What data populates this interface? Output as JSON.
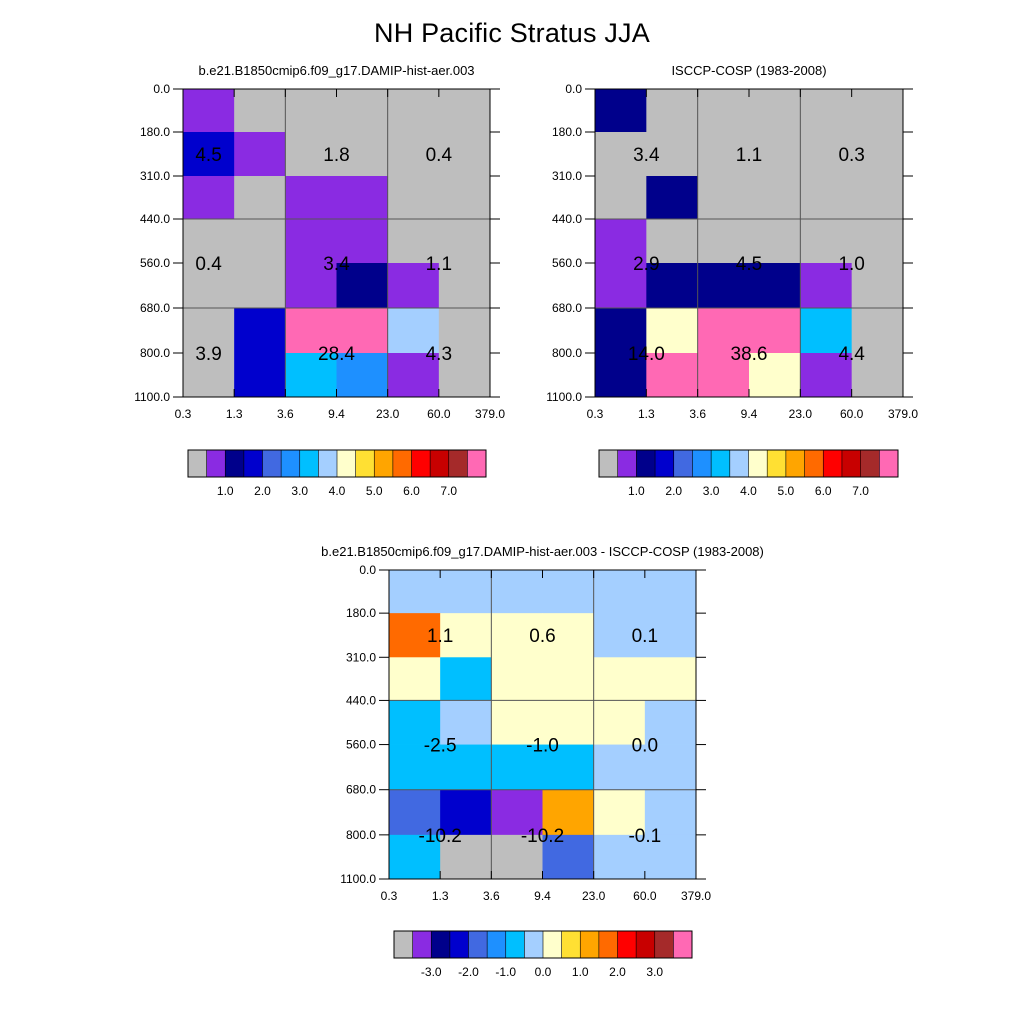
{
  "title": "NH Pacific Stratus JJA",
  "palette": {
    "abs": [
      "#BEBEBE",
      "#8A2BE2",
      "#00008B",
      "#0000CD",
      "#4169E1",
      "#1E90FF",
      "#00BFFF",
      "#A4CFFF",
      "#FFFFCC",
      "#FFE033",
      "#FFA500",
      "#FF6A00",
      "#FF0000",
      "#C80000",
      "#A52A2A",
      "#FF69B4"
    ],
    "diff": [
      "#BEBEBE",
      "#8A2BE2",
      "#00008B",
      "#0000CD",
      "#4169E1",
      "#1E90FF",
      "#00BFFF",
      "#A4CFFF",
      "#FFFFCC",
      "#FFE033",
      "#FFA500",
      "#FF6A00",
      "#FF0000",
      "#C80000",
      "#A52A2A",
      "#FF69B4"
    ]
  },
  "chart_data": [
    {
      "type": "heatmap",
      "subtitle": "b.e21.B1850cmip6.f09_g17.DAMIP-hist-aer.003",
      "x_ticks": [
        "0.3",
        "1.3",
        "3.6",
        "9.4",
        "23.0",
        "60.0",
        "379.0"
      ],
      "y_ticks": [
        "0.0",
        "180.0",
        "310.0",
        "440.0",
        "560.0",
        "680.0",
        "800.0",
        "1100.0"
      ],
      "cells": [
        [
          1,
          0,
          0,
          0,
          0,
          0
        ],
        [
          3,
          1,
          0,
          0,
          0,
          0
        ],
        [
          1,
          0,
          1,
          1,
          0,
          0
        ],
        [
          0,
          0,
          1,
          1,
          0,
          0
        ],
        [
          0,
          0,
          1,
          2,
          1,
          0
        ],
        [
          0,
          3,
          15,
          15,
          7,
          0
        ],
        [
          0,
          3,
          6,
          5,
          1,
          0
        ]
      ],
      "labels": [
        {
          "text": "4.5",
          "col": 0.5,
          "row": 1.5
        },
        {
          "text": "1.8",
          "col": 3,
          "row": 1.5
        },
        {
          "text": "0.4",
          "col": 5,
          "row": 1.5
        },
        {
          "text": "0.4",
          "col": 0.5,
          "row": 4
        },
        {
          "text": "3.4",
          "col": 3,
          "row": 4
        },
        {
          "text": "1.1",
          "col": 5,
          "row": 4
        },
        {
          "text": "3.9",
          "col": 0.5,
          "row": 6
        },
        {
          "text": "28.4",
          "col": 3,
          "row": 6
        },
        {
          "text": "4.3",
          "col": 5,
          "row": 6
        }
      ],
      "colorbar_labels": [
        "1.0",
        "2.0",
        "3.0",
        "4.0",
        "5.0",
        "6.0",
        "7.0"
      ]
    },
    {
      "type": "heatmap",
      "subtitle": "ISCCP-COSP (1983-2008)",
      "x_ticks": [
        "0.3",
        "1.3",
        "3.6",
        "9.4",
        "23.0",
        "60.0",
        "379.0"
      ],
      "y_ticks": [
        "0.0",
        "180.0",
        "310.0",
        "440.0",
        "560.0",
        "680.0",
        "800.0",
        "1100.0"
      ],
      "cells": [
        [
          2,
          0,
          0,
          0,
          0,
          0
        ],
        [
          0,
          0,
          0,
          0,
          0,
          0
        ],
        [
          0,
          2,
          0,
          0,
          0,
          0
        ],
        [
          1,
          0,
          0,
          0,
          0,
          0
        ],
        [
          1,
          2,
          2,
          2,
          1,
          0
        ],
        [
          2,
          8,
          15,
          15,
          6,
          0
        ],
        [
          2,
          15,
          15,
          8,
          1,
          0
        ]
      ],
      "labels": [
        {
          "text": "3.4",
          "col": 1,
          "row": 1.5
        },
        {
          "text": "1.1",
          "col": 3,
          "row": 1.5
        },
        {
          "text": "0.3",
          "col": 5,
          "row": 1.5
        },
        {
          "text": "2.9",
          "col": 1,
          "row": 4
        },
        {
          "text": "4.5",
          "col": 3,
          "row": 4
        },
        {
          "text": "1.0",
          "col": 5,
          "row": 4
        },
        {
          "text": "14.0",
          "col": 1,
          "row": 6
        },
        {
          "text": "38.6",
          "col": 3,
          "row": 6
        },
        {
          "text": "4.4",
          "col": 5,
          "row": 6
        }
      ],
      "colorbar_labels": [
        "1.0",
        "2.0",
        "3.0",
        "4.0",
        "5.0",
        "6.0",
        "7.0"
      ]
    },
    {
      "type": "heatmap",
      "subtitle": "b.e21.B1850cmip6.f09_g17.DAMIP-hist-aer.003 - ISCCP-COSP (1983-2008)",
      "x_ticks": [
        "0.3",
        "1.3",
        "3.6",
        "9.4",
        "23.0",
        "60.0",
        "379.0"
      ],
      "y_ticks": [
        "0.0",
        "180.0",
        "310.0",
        "440.0",
        "560.0",
        "680.0",
        "800.0",
        "1100.0"
      ],
      "cells": [
        [
          7,
          7,
          7,
          7,
          7,
          7
        ],
        [
          11,
          8,
          8,
          8,
          7,
          7
        ],
        [
          8,
          6,
          8,
          8,
          8,
          8
        ],
        [
          6,
          7,
          8,
          8,
          8,
          7
        ],
        [
          6,
          6,
          6,
          6,
          7,
          7
        ],
        [
          4,
          3,
          1,
          10,
          8,
          7
        ],
        [
          6,
          0,
          0,
          4,
          7,
          7
        ]
      ],
      "labels": [
        {
          "text": "1.1",
          "col": 1,
          "row": 1.5
        },
        {
          "text": "0.6",
          "col": 3,
          "row": 1.5
        },
        {
          "text": "0.1",
          "col": 5,
          "row": 1.5
        },
        {
          "text": "-2.5",
          "col": 1,
          "row": 4
        },
        {
          "text": "-1.0",
          "col": 3,
          "row": 4
        },
        {
          "text": "0.0",
          "col": 5,
          "row": 4
        },
        {
          "text": "-10.2",
          "col": 1,
          "row": 6
        },
        {
          "text": "-10.2",
          "col": 3,
          "row": 6
        },
        {
          "text": "-0.1",
          "col": 5,
          "row": 6
        }
      ],
      "colorbar_labels": [
        "-3.0",
        "-2.0",
        "-1.0",
        "0.0",
        "1.0",
        "2.0",
        "3.0"
      ]
    }
  ]
}
